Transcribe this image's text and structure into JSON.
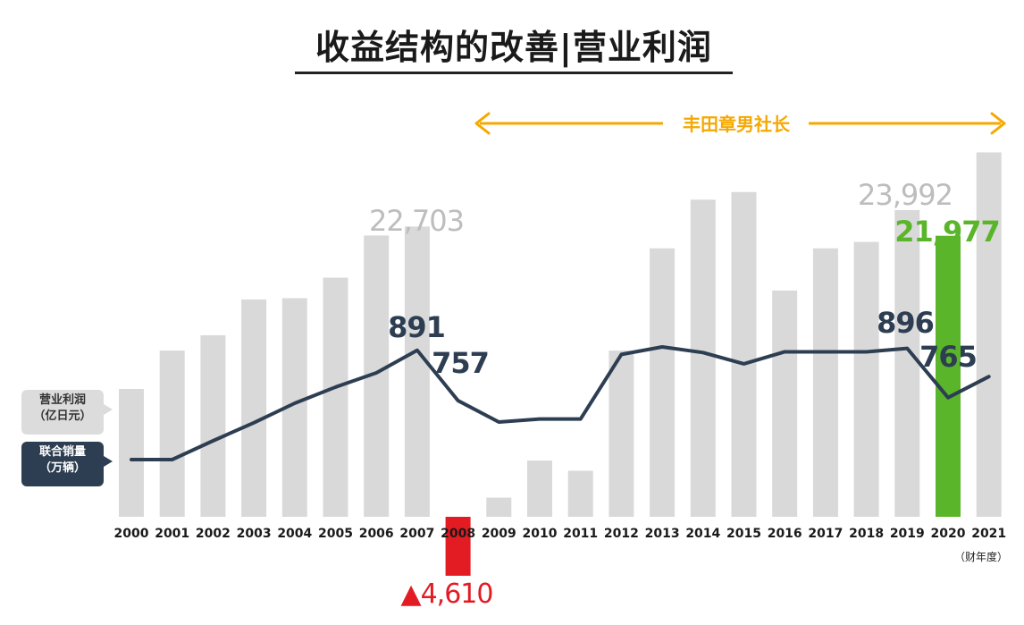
{
  "title": "收益结构的改善|营业利润",
  "president_label": "丰田章男社长",
  "legend": {
    "profit_line1": "营业利润",
    "profit_line2": "（亿日元）",
    "sales_line1": "联合销量",
    "sales_line2": "（万辆）"
  },
  "fiscal_year_note": "（财年度）",
  "colors": {
    "bar": "#d9d9d9",
    "bar_highlight": "#5ab52a",
    "bar_negative": "#e31b23",
    "line": "#2e3e52",
    "accent_orange": "#f5a800"
  },
  "chart_data": {
    "type": "bar+line",
    "categories": [
      "2000",
      "2001",
      "2002",
      "2003",
      "2004",
      "2005",
      "2006",
      "2007",
      "2008",
      "2009",
      "2010",
      "2011",
      "2012",
      "2013",
      "2014",
      "2015",
      "2016",
      "2017",
      "2018",
      "2019",
      "2020",
      "2021"
    ],
    "series": [
      {
        "name": "营业利润（亿日元）",
        "type": "bar",
        "values": [
          10000,
          13000,
          14200,
          17000,
          17100,
          18700,
          22000,
          22703,
          -4610,
          1500,
          4400,
          3600,
          13000,
          21000,
          24800,
          25400,
          17700,
          21000,
          21500,
          23992,
          21977,
          28500
        ]
      },
      {
        "name": "联合销量（万辆）",
        "type": "line",
        "values": [
          600,
          600,
          650,
          698,
          750,
          793,
          831,
          891,
          757,
          700,
          708,
          708,
          880,
          900,
          885,
          855,
          887,
          887,
          887,
          896,
          765,
          821
        ]
      }
    ],
    "data_labels": [
      {
        "text": "22,703",
        "index": 7,
        "series": "profit"
      },
      {
        "text": "▲4,610",
        "index": 8,
        "series": "profit"
      },
      {
        "text": "23,992",
        "index": 19,
        "series": "profit"
      },
      {
        "text": "21,977",
        "index": 20,
        "series": "profit"
      },
      {
        "text": "891",
        "index": 7,
        "series": "sales"
      },
      {
        "text": "757",
        "index": 8,
        "series": "sales"
      },
      {
        "text": "896",
        "index": 19,
        "series": "sales"
      },
      {
        "text": "765",
        "index": 20,
        "series": "sales"
      }
    ],
    "highlight_index": 20,
    "president_span": [
      "2009",
      "2021"
    ]
  }
}
